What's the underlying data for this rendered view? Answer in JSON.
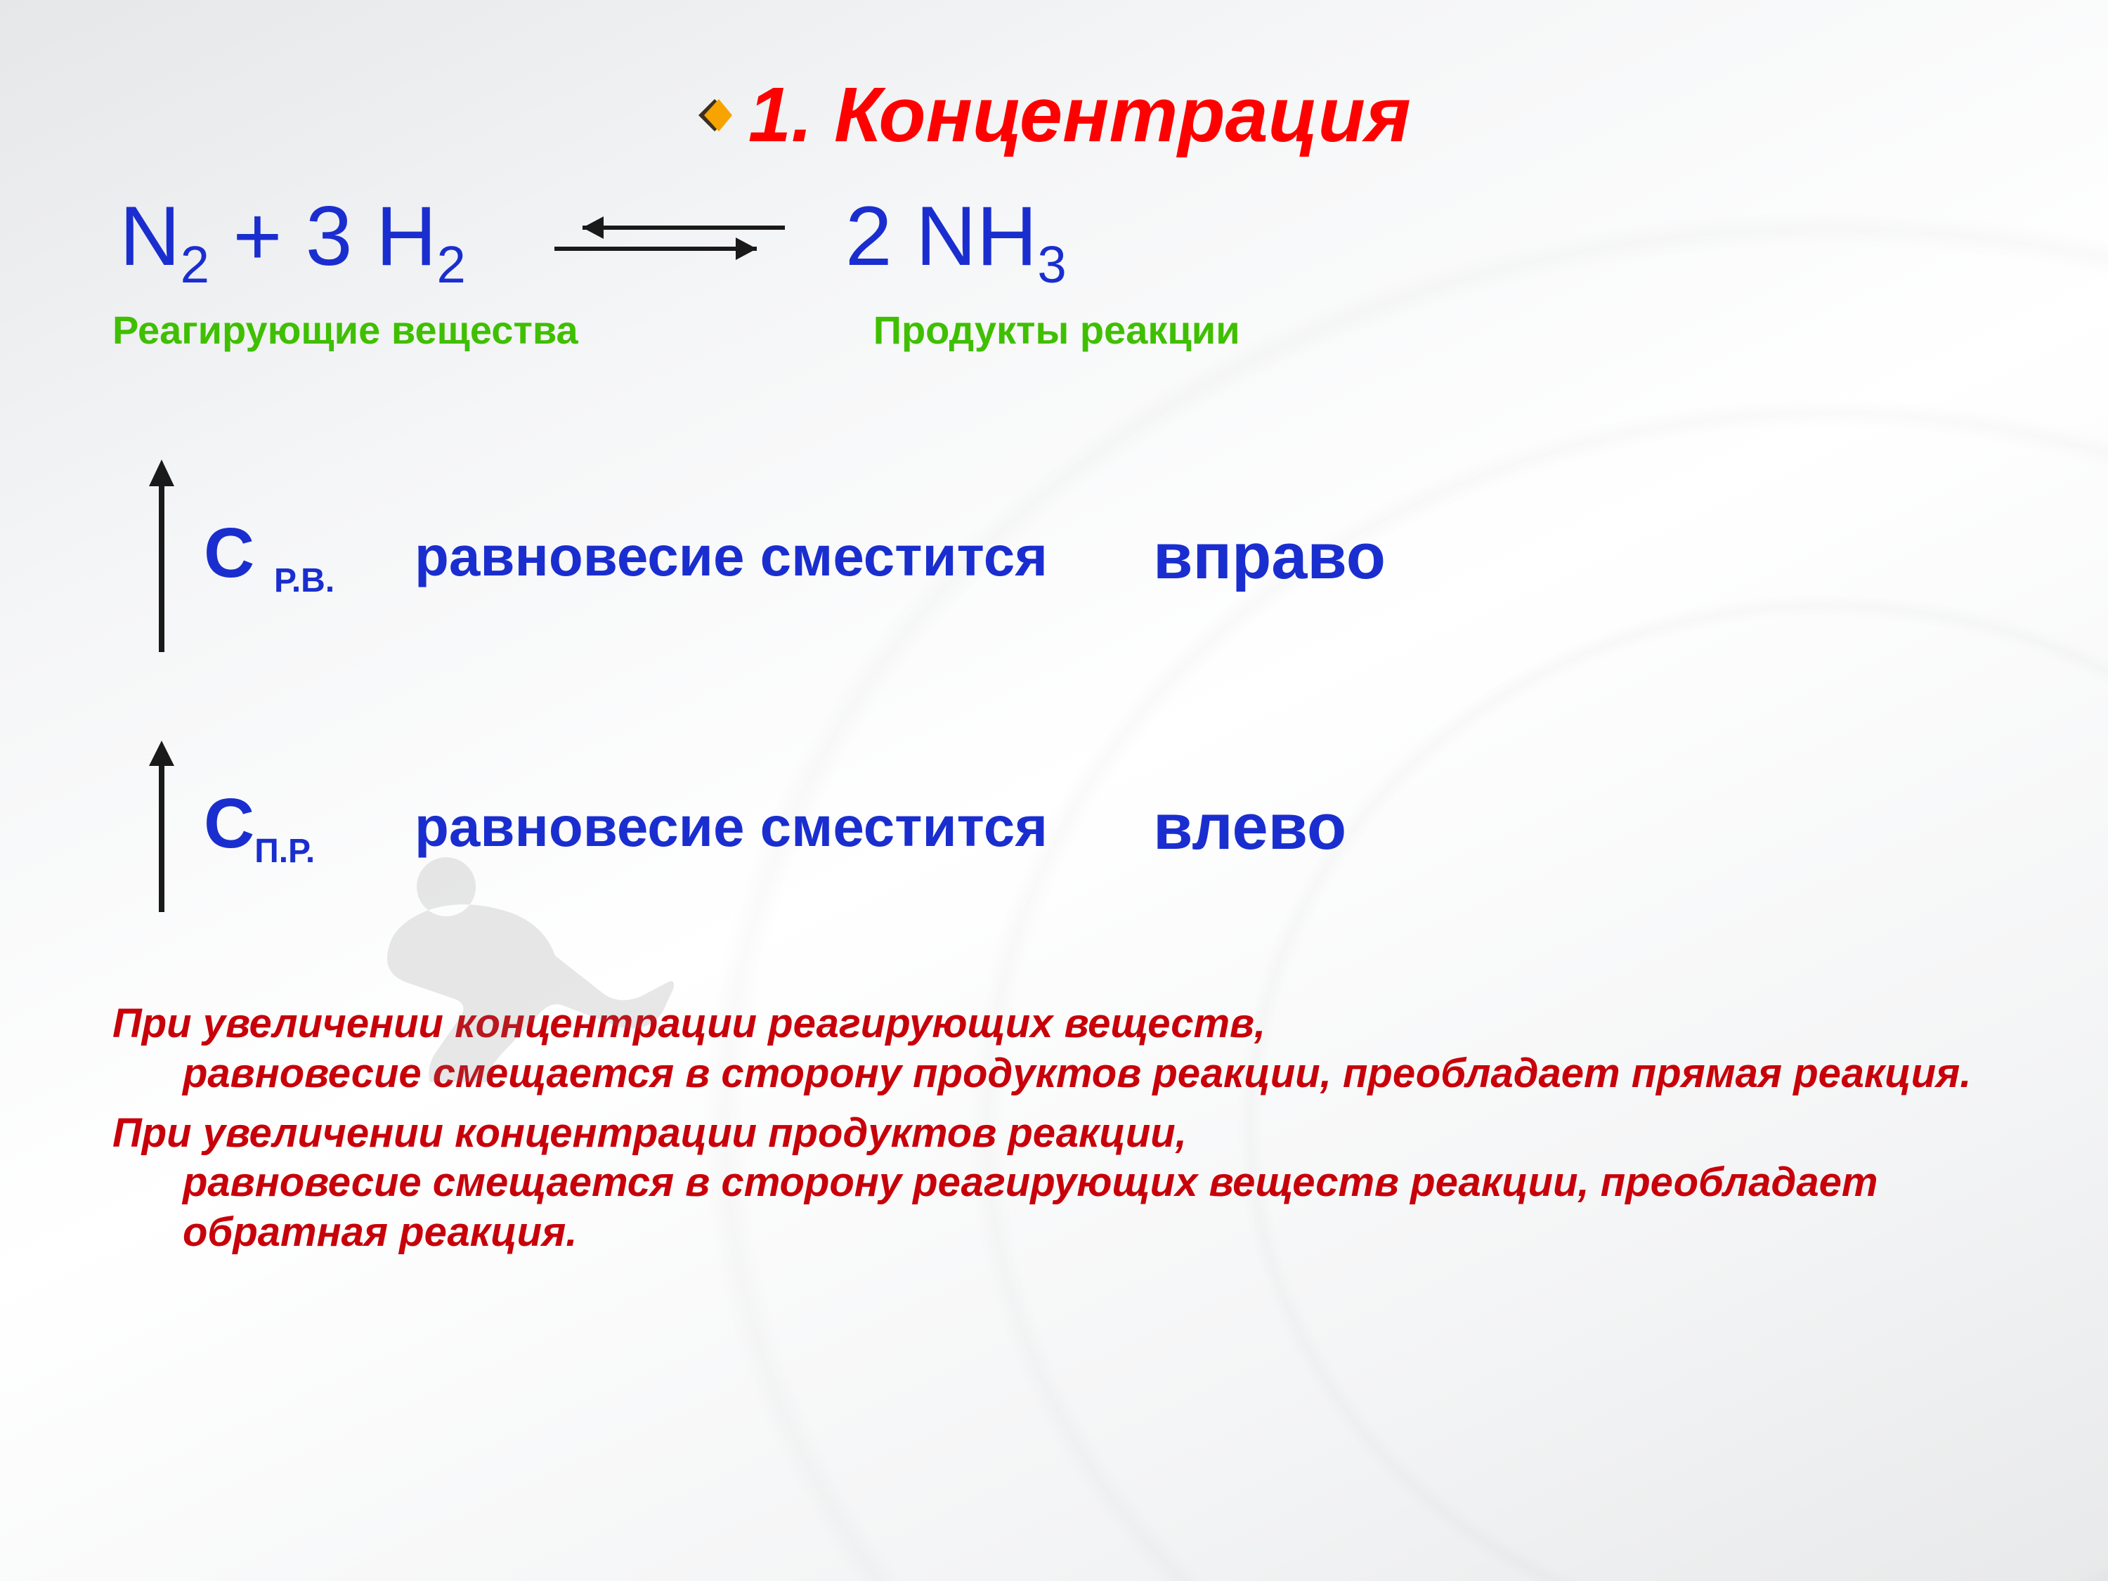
{
  "colors": {
    "title": "#ff0000",
    "equation": "#1a2ecf",
    "labels_green": "#3fbf00",
    "body_blue": "#1a2ecf",
    "conclusion_red": "#c8000a",
    "arrow_black": "#1a1a1a",
    "bullet_orange": "#f7a300",
    "bullet_dark": "#3a3020",
    "runner_gray": "#808080"
  },
  "fonts": {
    "title_pt": 110,
    "equation_pt": 120,
    "labels_pt": 56,
    "c_label_pt": 100,
    "rule_text_pt": 80,
    "rule_dir_pt": 92,
    "conclusion_pt": 58
  },
  "title": "1. Концентрация",
  "equation": {
    "left_pre": "N",
    "left_sub1": "2",
    "left_mid": " + 3 H",
    "left_sub2": "2",
    "right_pre": "2 NH",
    "right_sub": "3",
    "arrow_top_len": 320,
    "arrow_bot_len": 320,
    "arrow_stroke": 6,
    "arrow_gap": 26
  },
  "labels": {
    "reactants": "Реагирующие вещества",
    "products": "Продукты реакции"
  },
  "rules": [
    {
      "c_main": "С ",
      "c_sub": "Р.В.",
      "mid": "равновесие сместится",
      "dir": "вправо",
      "arrow_h": 280
    },
    {
      "c_main": "С",
      "c_sub": "П.Р.",
      "mid": "равновесие сместится",
      "dir": "влево",
      "arrow_h": 250
    }
  ],
  "conclusion": {
    "p1_first": "При увеличении концентрации реагирующих веществ,",
    "p1_rest": "равновесие смещается в сторону продуктов реакции, преобладает прямая реакция.",
    "p2_first": "При увеличении концентрации продуктов реакции,",
    "p2_rest": "равновесие смещается в сторону реагирующих веществ реакции, преобладает обратная реакция."
  }
}
